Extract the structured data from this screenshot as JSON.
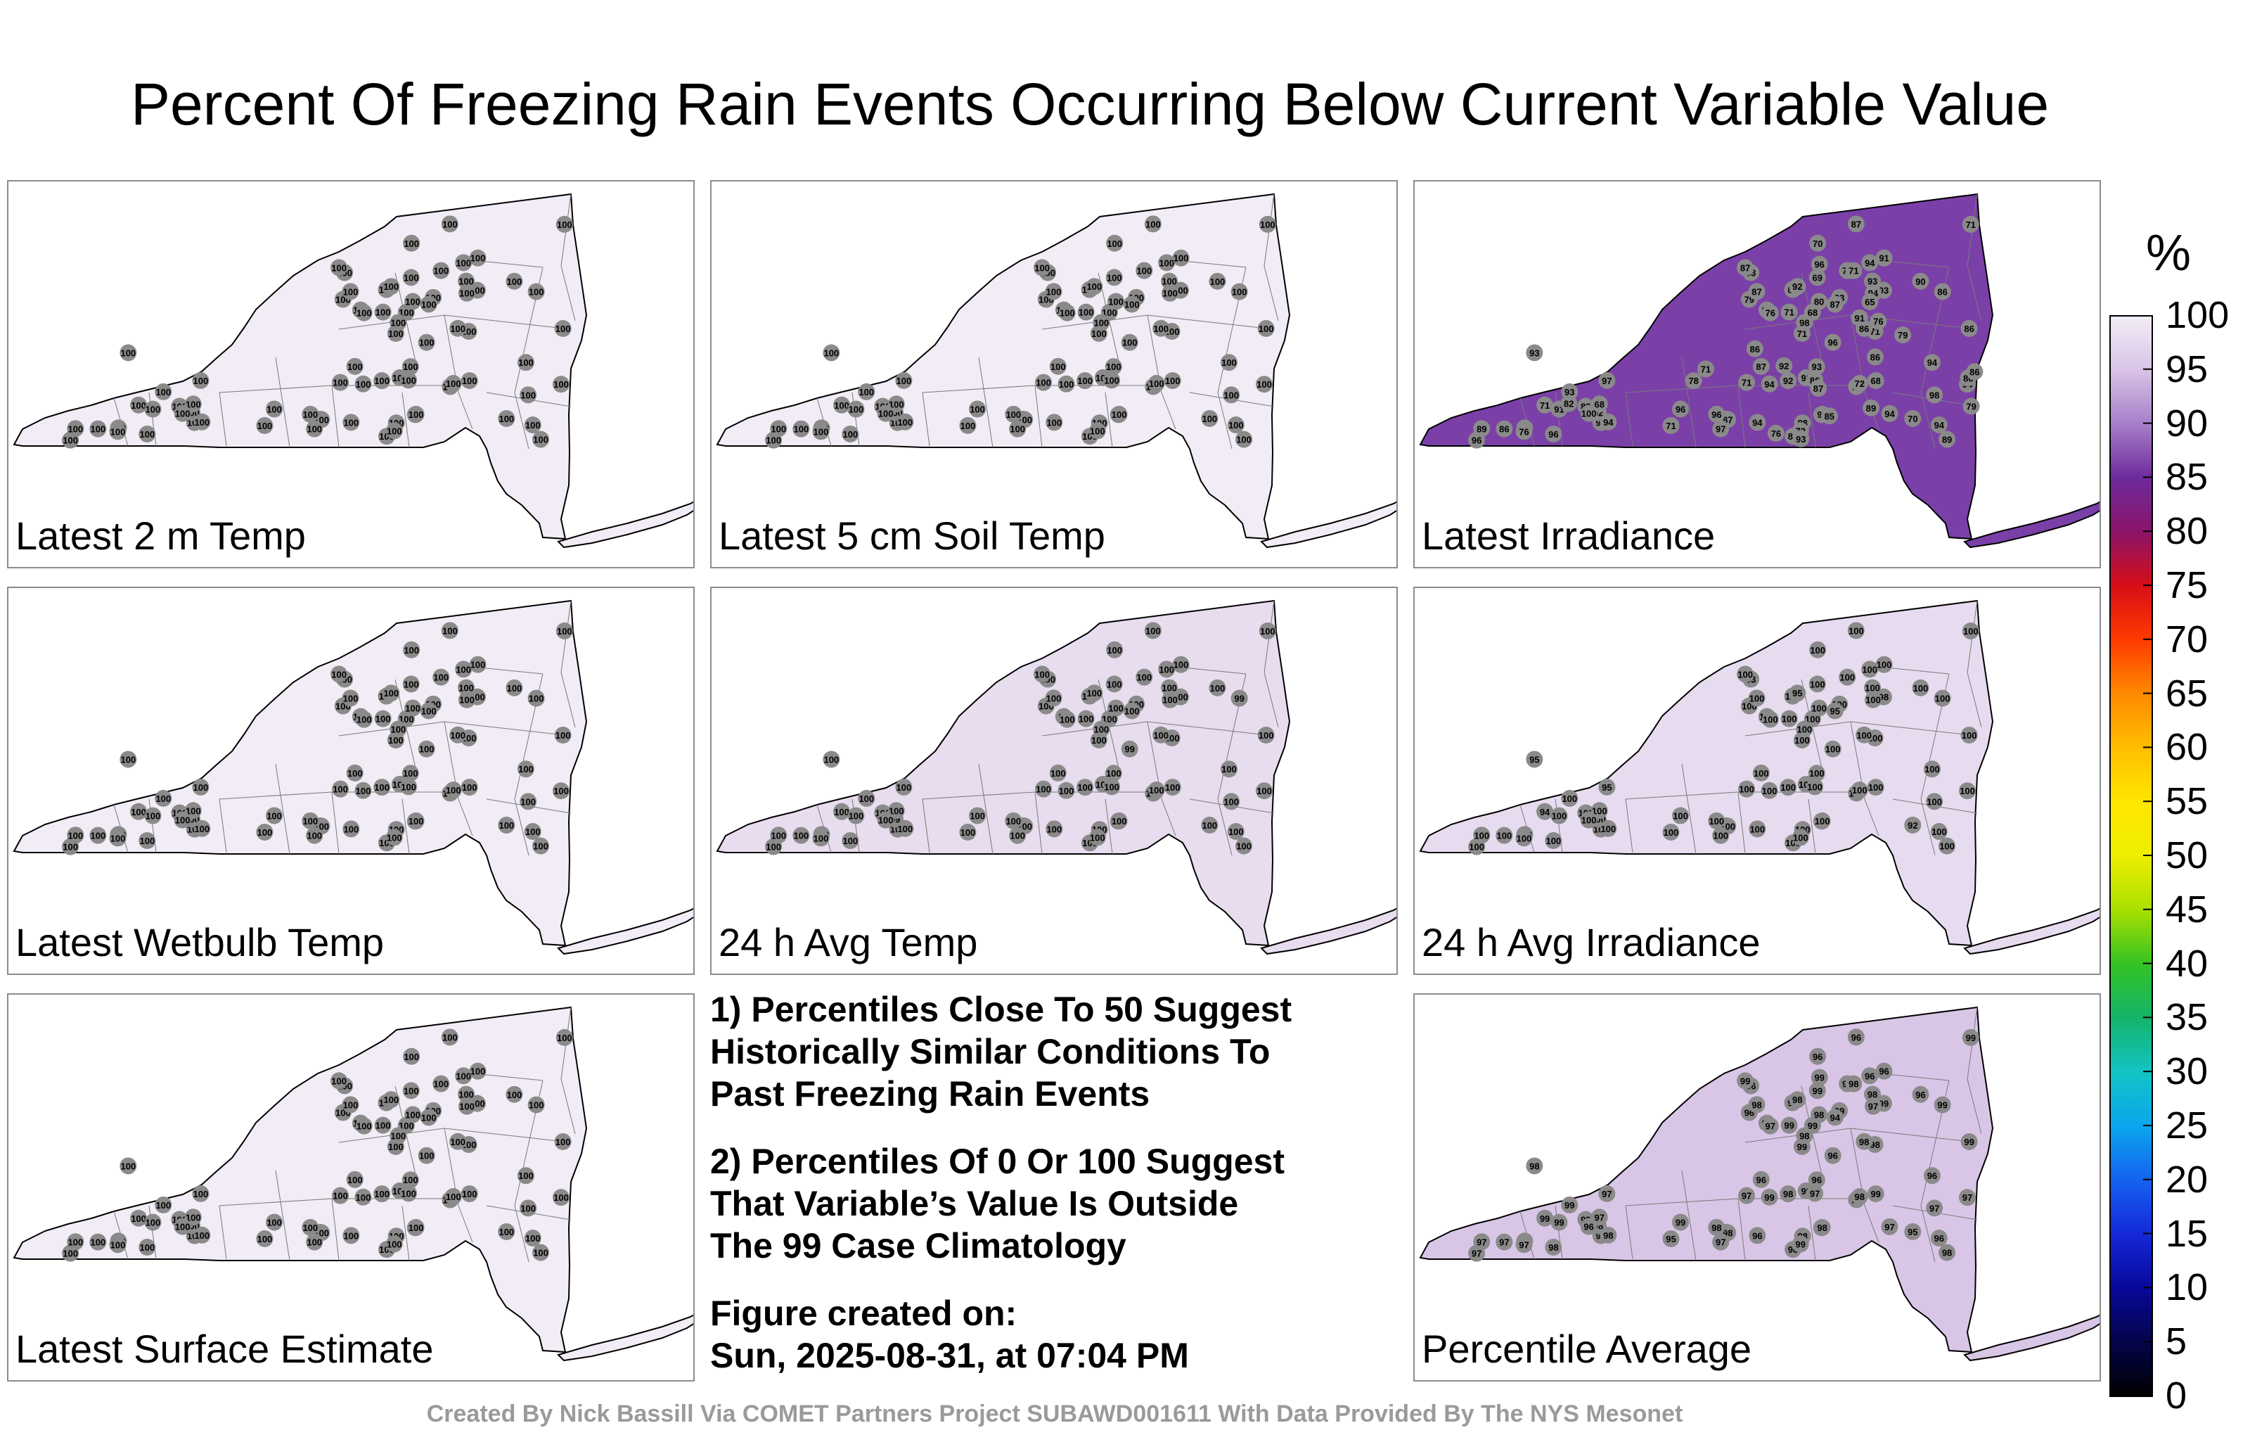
{
  "title": "Percent Of Freezing Rain Events Occurring Below Current Variable Value",
  "colors": {
    "panel_border": "#8c8c8c",
    "state_fill_near_100": "#f1ecf5",
    "station_marker": "#8a8a8a",
    "credit_text": "#9a9a9a"
  },
  "panels": [
    {
      "label": "Latest 2 m Temp",
      "fill": "#f1ecf5",
      "station_values": [
        100,
        100,
        100,
        100,
        100,
        100,
        100,
        100,
        100,
        100,
        100,
        100,
        100,
        100,
        100,
        100,
        100,
        100,
        100,
        100,
        100,
        100,
        100,
        100,
        100,
        100,
        100,
        100,
        100,
        100,
        100,
        100,
        100,
        100,
        100,
        100,
        100,
        100,
        100,
        100,
        100,
        100,
        100,
        100,
        100,
        100,
        100,
        100,
        100,
        100,
        100,
        100,
        100,
        100,
        100,
        100,
        100,
        100,
        100,
        100,
        100,
        100,
        100,
        100,
        100,
        100,
        100,
        100,
        100,
        100,
        100,
        100,
        100,
        100,
        100,
        100
      ]
    },
    {
      "label": "Latest 5 cm Soil Temp",
      "fill": "#f1ecf5",
      "station_values": [
        100,
        100,
        100,
        100,
        100,
        100,
        100,
        100,
        100,
        100,
        100,
        100,
        100,
        100,
        100,
        100,
        100,
        100,
        100,
        100,
        100,
        100,
        100,
        100,
        100,
        100,
        100,
        100,
        100,
        100,
        100,
        100,
        100,
        100,
        100,
        100,
        100,
        100,
        100,
        100,
        100,
        100,
        100,
        100,
        100,
        100,
        100,
        100,
        100,
        100,
        100,
        100,
        100,
        100,
        100,
        100,
        100,
        100,
        100,
        100,
        100,
        100,
        100,
        100,
        100,
        100,
        100,
        100,
        100,
        100,
        100,
        100,
        100,
        100,
        100,
        100
      ]
    },
    {
      "label": "Latest Irradiance",
      "fill": "#7b3fa8",
      "station_values": [
        89,
        91,
        89,
        71,
        93,
        94,
        93,
        71,
        70,
        87,
        94,
        91,
        86,
        71,
        71,
        93,
        65,
        70,
        68,
        69,
        71,
        87,
        94,
        92,
        94,
        71,
        68,
        89,
        93,
        88,
        71,
        96,
        96,
        95,
        91,
        94,
        94,
        92,
        71,
        82,
        87,
        98,
        97,
        94,
        96,
        94,
        86,
        96,
        72,
        80,
        86,
        89,
        93,
        92,
        96,
        86,
        87,
        93,
        79,
        87,
        89,
        76,
        90,
        71,
        76,
        86,
        72,
        68,
        87,
        98,
        100,
        97,
        96,
        93,
        94,
        72,
        96,
        94,
        71,
        76,
        82,
        71,
        76,
        92,
        86,
        91,
        89,
        93,
        86,
        78,
        87,
        79,
        86,
        79,
        85,
        86,
        65
      ]
    },
    {
      "label": "Latest Wetbulb Temp",
      "fill": "#f1ecf5",
      "station_values": [
        100,
        100,
        100,
        100,
        100,
        100,
        100,
        100,
        100,
        100,
        100,
        100,
        100,
        100,
        100,
        100,
        100,
        100,
        100,
        100,
        100,
        100,
        100,
        100,
        100,
        100,
        100,
        100,
        100,
        100,
        100,
        100,
        100,
        100,
        100,
        100,
        100,
        100,
        100,
        100,
        100,
        100,
        100,
        100,
        100,
        100,
        100,
        100,
        100,
        100,
        100,
        100,
        100,
        100,
        100,
        100,
        100,
        100,
        100,
        100,
        100,
        100,
        100,
        100,
        100,
        100,
        100,
        100,
        100,
        100,
        100,
        100,
        100,
        100,
        100,
        100
      ]
    },
    {
      "label": "24 h Avg Temp",
      "fill": "#e8dcef",
      "station_values": [
        100,
        100,
        100,
        100,
        100,
        100,
        100,
        100,
        100,
        100,
        100,
        100,
        100,
        100,
        100,
        100,
        100,
        100,
        100,
        100,
        100,
        100,
        100,
        100,
        100,
        100,
        100,
        100,
        100,
        100,
        100,
        100,
        100,
        100,
        100,
        100,
        100,
        100,
        100,
        100,
        100,
        100,
        100,
        100,
        100,
        100,
        100,
        99,
        100,
        100,
        99,
        100,
        100,
        99,
        99,
        100,
        100,
        100,
        100,
        100,
        100,
        100,
        100,
        100,
        100,
        100,
        100,
        100,
        100,
        100,
        100,
        100,
        100,
        100,
        100,
        100
      ]
    },
    {
      "label": "24 h Avg Irradiance",
      "fill": "#e7dcef",
      "station_values": [
        100,
        100,
        100,
        100,
        100,
        100,
        93,
        94,
        92,
        95,
        100,
        100,
        100,
        100,
        100,
        98,
        100,
        100,
        100,
        100,
        100,
        100,
        100,
        95,
        100,
        100,
        100,
        100,
        95,
        100,
        100,
        100,
        100,
        100,
        100,
        100,
        100,
        100,
        100,
        100,
        100,
        100,
        95,
        100,
        100,
        100,
        100,
        100,
        100,
        100,
        100,
        100,
        100,
        100,
        100,
        100,
        100,
        100,
        100,
        100,
        100,
        100,
        100,
        100,
        100,
        100,
        100,
        100,
        100,
        100,
        100,
        100,
        100,
        100,
        100,
        100
      ]
    },
    {
      "label": "Latest Surface Estimate",
      "fill": "#f1ecf5",
      "station_values": [
        100,
        100,
        100,
        100,
        100,
        100,
        100,
        100,
        100,
        100,
        100,
        100,
        100,
        100,
        100,
        100,
        100,
        100,
        100,
        100,
        100,
        100,
        100,
        100,
        100,
        100,
        100,
        100,
        100,
        100,
        100,
        100,
        100,
        100,
        100,
        100,
        100,
        100,
        100,
        100,
        100,
        100,
        100,
        100,
        100,
        100,
        100,
        100,
        100,
        100,
        100,
        100,
        100,
        100,
        100,
        100,
        100,
        100,
        100,
        100,
        100,
        100,
        100,
        100,
        100,
        100,
        100,
        100,
        100,
        100,
        100,
        100,
        100,
        100,
        100,
        100
      ]
    },
    {
      "label": "Percentile Average",
      "fill": "#d9c6e6",
      "station_values": [
        98,
        99,
        98,
        96,
        99,
        96,
        96,
        99,
        95,
        94,
        96,
        96,
        99,
        99,
        95,
        99,
        94,
        96,
        99,
        99,
        98,
        98,
        99,
        98,
        96,
        99,
        99,
        99,
        98,
        98,
        97,
        97,
        99,
        98,
        99,
        98,
        96,
        98,
        99,
        98,
        99,
        98,
        97,
        97,
        98,
        97,
        97,
        99,
        99,
        98,
        99,
        97,
        99,
        98,
        96,
        97,
        96,
        96,
        96,
        98,
        98,
        97,
        96,
        99,
        97,
        98,
        99,
        97,
        96,
        97,
        96,
        97,
        98,
        98,
        98,
        98,
        99,
        97,
        98
      ]
    }
  ],
  "notes": {
    "note1": [
      "1) Percentiles Close To 50 Suggest",
      "Historically Similar Conditions To",
      "Past Freezing Rain Events"
    ],
    "note2": [
      "2) Percentiles Of 0 Or 100 Suggest",
      "That Variable’s Value Is Outside",
      "The 99 Case Climatology"
    ],
    "created": [
      "Figure created on:",
      "Sun, 2025-08-31, at 07:04 PM"
    ]
  },
  "colorbar": {
    "unit": "%",
    "ticks": [
      "100",
      "95",
      "90",
      "85",
      "80",
      "75",
      "70",
      "65",
      "60",
      "55",
      "50",
      "45",
      "40",
      "35",
      "30",
      "25",
      "20",
      "15",
      "10",
      "5",
      "0"
    ],
    "range": [
      0,
      100
    ],
    "colors_high_to_low": [
      "#f2edf6",
      "#d8c4e6",
      "#a67fc9",
      "#6e2a9c",
      "#8a1468",
      "#d80e17",
      "#ff3a00",
      "#ff8a00",
      "#ffbe00",
      "#ffe600",
      "#eeee00",
      "#a8e000",
      "#34c224",
      "#14b46a",
      "#12c4c4",
      "#0aa6ee",
      "#1462f0",
      "#1428d8",
      "#08089a",
      "#04044a",
      "#000000"
    ]
  },
  "credit": "Created By Nick Bassill Via COMET Partners Project SUBAWD001611 With Data Provided By The NYS Mesonet"
}
